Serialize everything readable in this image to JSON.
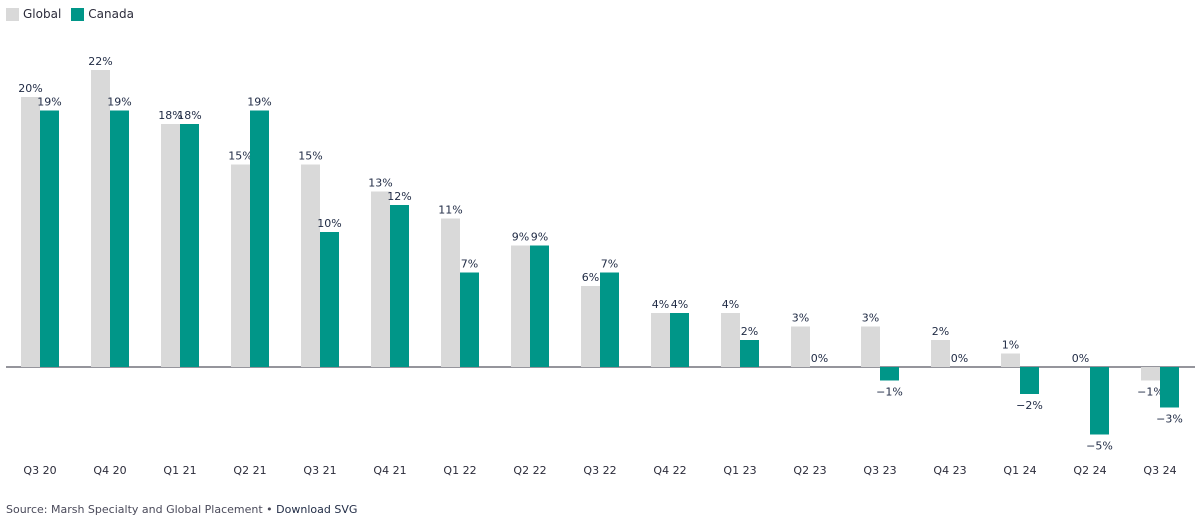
{
  "legend": {
    "items": [
      {
        "label": "Global",
        "color": "#d9d9d9"
      },
      {
        "label": "Canada",
        "color": "#009688"
      }
    ]
  },
  "footer": {
    "source_text": "Source: Marsh Specialty and Global Placement",
    "separator": " • ",
    "download_label": "Download SVG"
  },
  "chart_data": {
    "type": "bar",
    "categories": [
      "Q3 20",
      "Q4 20",
      "Q1 21",
      "Q2 21",
      "Q3 21",
      "Q4 21",
      "Q1 22",
      "Q2 22",
      "Q3 22",
      "Q4 22",
      "Q1 23",
      "Q2 23",
      "Q3 23",
      "Q4 23",
      "Q1 24",
      "Q2 24",
      "Q3 24"
    ],
    "series": [
      {
        "name": "Global",
        "color": "#d9d9d9",
        "values": [
          20,
          22,
          18,
          15,
          15,
          13,
          11,
          9,
          6,
          4,
          4,
          3,
          3,
          2,
          1,
          0,
          -1
        ]
      },
      {
        "name": "Canada",
        "color": "#009688",
        "values": [
          19,
          19,
          18,
          19,
          10,
          12,
          7,
          9,
          7,
          4,
          2,
          0,
          -1,
          0,
          -2,
          -5,
          -3
        ]
      }
    ],
    "value_suffix": "%",
    "ylim": [
      -5,
      22
    ],
    "grid": false,
    "legend_position": "top-left",
    "label_color": "#1f2a44"
  }
}
